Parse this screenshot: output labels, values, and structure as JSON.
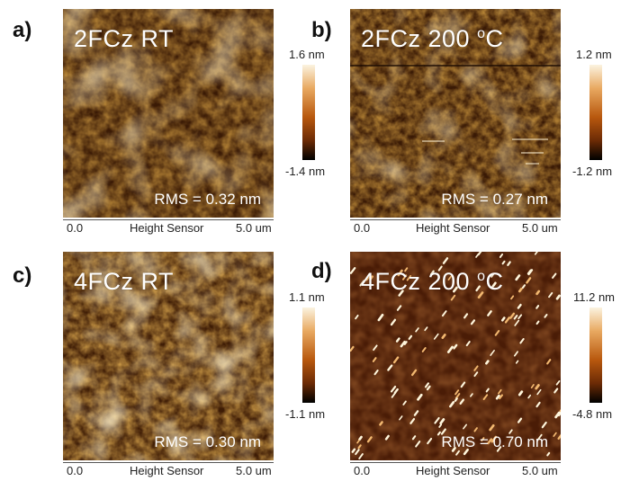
{
  "panels": {
    "a": {
      "letter": "a)",
      "title": "2FCz RT",
      "title_sup": "",
      "rms": "RMS = 0.32 nm",
      "colorbar_max": "1.6 nm",
      "colorbar_min": "-1.4 nm",
      "axis_start": "0.0",
      "axis_label": "Height Sensor",
      "axis_end": "5.0 um"
    },
    "b": {
      "letter": "b)",
      "title": "2FCz 200 ",
      "title_sup": "o",
      "title_suffix": "C",
      "rms": "RMS = 0.27 nm",
      "colorbar_max": "1.2 nm",
      "colorbar_min": "-1.2 nm",
      "axis_start": "0.0",
      "axis_label": "Height Sensor",
      "axis_end": "5.0 um"
    },
    "c": {
      "letter": "c)",
      "title": "4FCz RT",
      "title_sup": "",
      "rms": "RMS = 0.30 nm",
      "colorbar_max": "1.1 nm",
      "colorbar_min": "-1.1 nm",
      "axis_start": "0.0",
      "axis_label": "Height Sensor",
      "axis_end": "5.0 um"
    },
    "d": {
      "letter": "d)",
      "title": "4FCz 200 ",
      "title_sup": "o",
      "title_suffix": "C",
      "rms": "RMS = 0.70 nm",
      "colorbar_max": "11.2 nm",
      "colorbar_min": "-4.8 nm",
      "axis_start": "0.0",
      "axis_label": "Height Sensor",
      "axis_end": "5.0 um"
    }
  },
  "colors": {
    "afm_dark": "#3a1a05",
    "afm_mid": "#9a4e0c",
    "afm_light": "#f0d7a0",
    "afm_d_bg": "#4a1c06"
  }
}
